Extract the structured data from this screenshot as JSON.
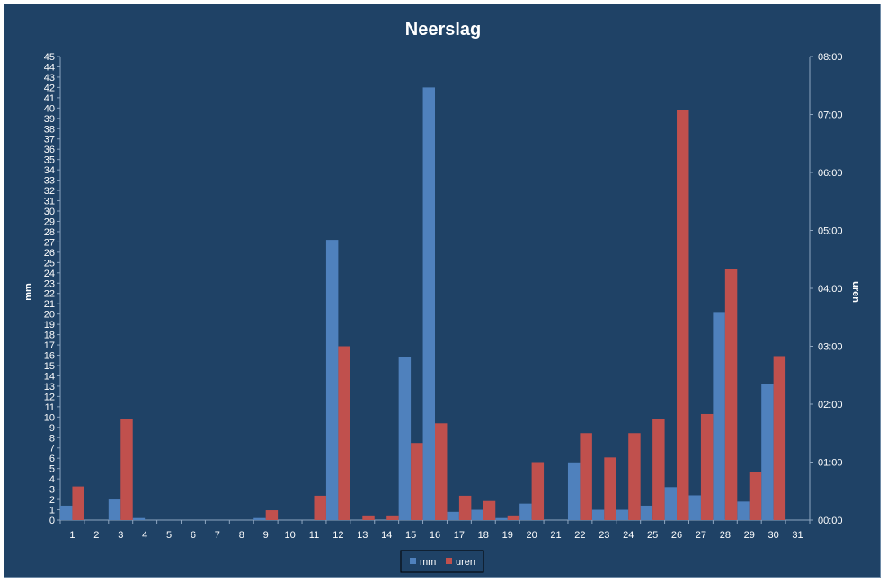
{
  "chart_data": {
    "type": "bar",
    "title": "Neerslag",
    "ylabel": "mm",
    "y2label": "uren",
    "ylim": [
      0,
      45
    ],
    "y2lim_hours": [
      0,
      8
    ],
    "y2_ticks": [
      "00:00",
      "01:00",
      "02:00",
      "03:00",
      "04:00",
      "05:00",
      "06:00",
      "07:00",
      "08:00"
    ],
    "categories": [
      "1",
      "2",
      "3",
      "4",
      "5",
      "6",
      "7",
      "8",
      "9",
      "10",
      "11",
      "12",
      "13",
      "14",
      "15",
      "16",
      "17",
      "18",
      "19",
      "20",
      "21",
      "22",
      "23",
      "24",
      "25",
      "26",
      "27",
      "28",
      "29",
      "30",
      "31"
    ],
    "series": [
      {
        "name": "mm",
        "color": "#4f81bd",
        "axis": "left",
        "values": [
          1.4,
          0,
          2.0,
          0.2,
          0,
          0,
          0,
          0,
          0.2,
          0,
          0,
          27.2,
          0,
          0,
          15.8,
          42.0,
          0.8,
          1.0,
          0.2,
          1.6,
          0,
          5.6,
          1.0,
          1.0,
          1.4,
          3.2,
          2.4,
          20.2,
          1.8,
          13.2,
          0
        ]
      },
      {
        "name": "uren",
        "color": "#c0504d",
        "axis": "right",
        "values": [
          0.58,
          0,
          1.75,
          0,
          0,
          0,
          0,
          0,
          0.17,
          0,
          0.42,
          3.0,
          0.08,
          0.08,
          1.33,
          1.67,
          0.42,
          0.33,
          0.08,
          1.0,
          0,
          1.5,
          1.08,
          1.5,
          1.75,
          7.08,
          1.83,
          4.33,
          0.83,
          2.83,
          0
        ]
      }
    ],
    "legend": "bottom",
    "grid": false
  }
}
